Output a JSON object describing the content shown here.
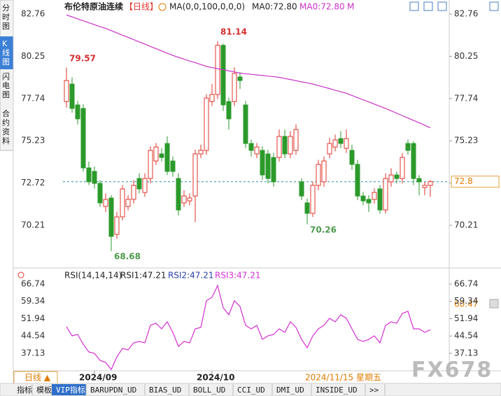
{
  "ui": {
    "sidebar": [
      "分时图",
      "K线图",
      "闪电图",
      "合约资料"
    ],
    "period_button": "日线 ▲",
    "date_label": "2024/11/15 星期五",
    "rsi_marker": "60.47",
    "watermark": "FX678",
    "tabs": [
      "指标",
      "模板",
      "VIP指标",
      "BARUPDN_UD",
      "BIAS_UD",
      "BOLL_UD",
      "CCI_UD",
      "DMI_UD",
      "INSIDE_UD",
      ">>"
    ]
  },
  "chart_data": [
    {
      "type": "candlestick",
      "title": "布伦特原油连续",
      "period": "【日线】",
      "indicator": "MA(0,0,100,0,0,0)",
      "legend": [
        "MA0:72.80",
        "MA0:72.80",
        "M"
      ],
      "up_color": "#e0352b",
      "down_color": "#2b9a2b",
      "open": [
        77.56,
        78.6,
        77.36,
        77.15,
        73.62,
        73.41,
        72.7,
        71.33,
        71.83,
        69.67,
        70.71,
        71.33,
        71.75,
        72.99,
        72.16,
        72.99,
        74.03,
        74.45,
        75.07,
        74.03,
        72.99,
        71.54,
        71.66,
        71.95,
        74.45,
        74.66,
        77.56,
        77.98,
        80.9,
        77.56,
        77.56,
        79.02,
        77.36,
        75.07,
        74.45,
        74.66,
        74.45,
        74.24,
        74.24,
        75.49,
        74.45,
        74.66,
        72.79,
        71.54,
        70.92,
        72.58,
        72.79,
        74.45,
        74.86,
        75.36,
        74.78,
        74.66,
        73.83,
        71.95,
        71.75,
        71.75,
        72.37,
        71.12,
        72.79,
        73.2,
        72.99,
        75.07,
        75.07,
        72.99,
        72.45,
        72.58
      ],
      "high": [
        79.57,
        79.0,
        77.6,
        77.4,
        74.0,
        73.7,
        72.9,
        72.1,
        72.0,
        71.0,
        72.6,
        72.0,
        72.9,
        73.3,
        73.3,
        74.9,
        75.1,
        74.8,
        75.5,
        74.3,
        73.3,
        72.3,
        72.1,
        74.7,
        75.0,
        78.0,
        78.6,
        81.14,
        81.0,
        77.8,
        79.6,
        79.3,
        77.6,
        75.3,
        75.1,
        74.9,
        74.7,
        74.5,
        75.9,
        75.9,
        75.8,
        76.2,
        73.0,
        71.8,
        72.8,
        74.1,
        74.3,
        75.4,
        75.6,
        75.8,
        75.9,
        75.0,
        74.1,
        72.2,
        72.0,
        72.4,
        72.6,
        73.3,
        73.6,
        73.4,
        74.5,
        75.3,
        75.2,
        73.2,
        72.8,
        72.9
      ],
      "low": [
        77.2,
        76.9,
        76.2,
        73.4,
        72.6,
        72.4,
        71.3,
        71.0,
        68.68,
        69.4,
        70.5,
        71.1,
        71.5,
        72.1,
        71.9,
        72.7,
        73.8,
        74.0,
        73.2,
        73.1,
        70.8,
        71.3,
        71.4,
        70.4,
        74.2,
        74.4,
        77.3,
        77.7,
        77.0,
        75.9,
        77.3,
        78.3,
        74.8,
        74.3,
        74.2,
        72.9,
        72.7,
        72.5,
        74.0,
        74.2,
        74.2,
        74.4,
        71.7,
        70.26,
        70.7,
        72.3,
        72.5,
        74.2,
        74.6,
        74.8,
        74.5,
        73.5,
        71.7,
        71.4,
        71.0,
        71.5,
        70.9,
        70.9,
        72.5,
        72.7,
        72.7,
        74.4,
        72.6,
        72.0,
        72.0,
        71.9
      ],
      "close": [
        78.81,
        77.15,
        76.53,
        73.62,
        72.79,
        72.7,
        71.54,
        71.75,
        69.55,
        70.71,
        72.37,
        71.75,
        72.58,
        72.37,
        72.99,
        74.66,
        74.86,
        74.24,
        73.41,
        73.41,
        71.12,
        71.95,
        71.83,
        74.45,
        74.66,
        77.77,
        77.98,
        80.9,
        77.36,
        76.53,
        79.23,
        78.81,
        75.07,
        74.66,
        74.86,
        73.2,
        72.99,
        72.79,
        75.49,
        74.45,
        75.49,
        75.9,
        71.95,
        70.92,
        72.58,
        73.83,
        74.03,
        75.07,
        75.28,
        75.07,
        75.36,
        73.83,
        71.95,
        71.66,
        71.54,
        72.16,
        71.12,
        72.99,
        73.2,
        72.99,
        74.24,
        74.66,
        72.99,
        72.79,
        72.58,
        72.8
      ],
      "ma": {
        "color": "#c832c8",
        "values": [
          82.7,
          82.59,
          82.47,
          82.36,
          82.24,
          82.13,
          82.01,
          81.9,
          81.77,
          81.64,
          81.5,
          81.37,
          81.24,
          81.1,
          80.97,
          80.83,
          80.7,
          80.57,
          80.43,
          80.3,
          80.19,
          80.08,
          79.97,
          79.87,
          79.76,
          79.65,
          79.58,
          79.51,
          79.45,
          79.38,
          79.32,
          79.25,
          79.21,
          79.18,
          79.14,
          79.11,
          79.07,
          79.04,
          79.0,
          78.93,
          78.87,
          78.8,
          78.73,
          78.67,
          78.6,
          78.51,
          78.42,
          78.33,
          78.23,
          78.14,
          78.05,
          77.92,
          77.79,
          77.66,
          77.54,
          77.41,
          77.28,
          77.15,
          77.01,
          76.87,
          76.72,
          76.58,
          76.44,
          76.3,
          76.15,
          76.0
        ]
      },
      "ylim": [
        67.8,
        83.26
      ],
      "yticks": [
        82.76,
        80.25,
        77.74,
        75.23,
        72.72,
        70.21
      ],
      "xticks": [
        {
          "value": 5,
          "label": "2024/09"
        },
        {
          "value": 26,
          "label": "2024/10"
        }
      ]
    },
    {
      "type": "line",
      "title": "RSI(14,14,14)",
      "legend": [
        "RSI1:47.21",
        "RSI2:47.21",
        "RSI3:47.21"
      ],
      "series": [
        {
          "name": "RSI",
          "color": "#d42fd4",
          "values": [
            48.5,
            44.6,
            45.2,
            41.0,
            37.7,
            37.1,
            34.1,
            33.2,
            30.2,
            35.6,
            39.2,
            38.6,
            41.6,
            42.2,
            41.6,
            49.1,
            50.0,
            47.6,
            50.6,
            46.1,
            40.1,
            42.2,
            41.6,
            47.6,
            48.2,
            59.6,
            61.1,
            66.1,
            56.6,
            53.6,
            59.6,
            57.2,
            49.1,
            47.6,
            49.1,
            43.1,
            44.6,
            45.2,
            47.6,
            46.1,
            50.6,
            48.2,
            43.1,
            39.5,
            44.6,
            47.6,
            49.1,
            52.1,
            50.6,
            53.6,
            52.1,
            47.6,
            43.1,
            42.2,
            43.1,
            44.6,
            41.6,
            49.1,
            50.6,
            50.0,
            54.2,
            55.1,
            47.6,
            47.6,
            46.1,
            47.21
          ]
        }
      ],
      "ylim": [
        29.65,
        70.03
      ],
      "yticks": [
        66.74,
        59.34,
        51.94,
        44.54,
        37.13
      ]
    }
  ]
}
